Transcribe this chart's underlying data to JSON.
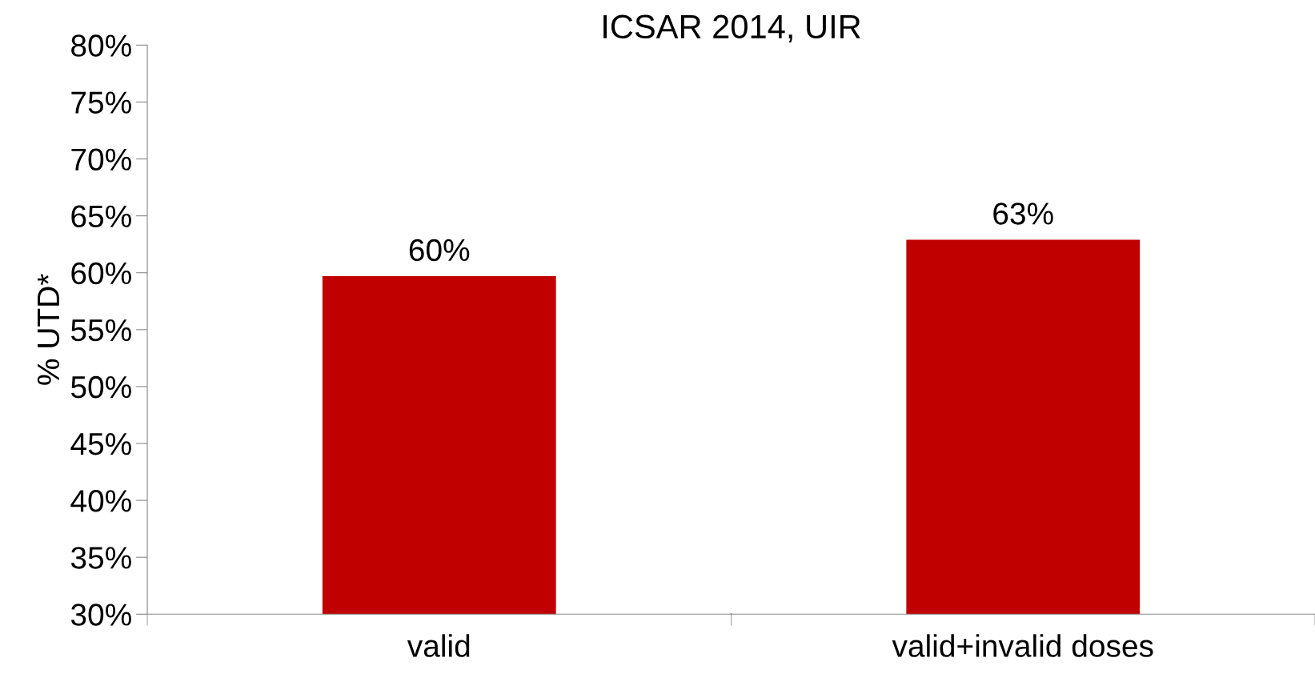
{
  "chart_data": {
    "type": "bar",
    "title": "ICSAR 2014, UIR",
    "ylabel": "% UTD*",
    "categories": [
      "valid",
      "valid+invalid doses"
    ],
    "values": [
      59.7,
      62.9
    ],
    "value_labels": [
      "60%",
      "63%"
    ],
    "color": "#c00000",
    "ylim": [
      30,
      80
    ],
    "yticks": [
      {
        "value": 30,
        "label": "30%"
      },
      {
        "value": 35,
        "label": "35%"
      },
      {
        "value": 40,
        "label": "40%"
      },
      {
        "value": 45,
        "label": "45%"
      },
      {
        "value": 50,
        "label": "50%"
      },
      {
        "value": 55,
        "label": "55%"
      },
      {
        "value": 60,
        "label": "60%"
      },
      {
        "value": 65,
        "label": "65%"
      },
      {
        "value": 70,
        "label": "70%"
      },
      {
        "value": 75,
        "label": "75%"
      },
      {
        "value": 80,
        "label": "80%"
      }
    ],
    "grid": false,
    "legend": false
  }
}
